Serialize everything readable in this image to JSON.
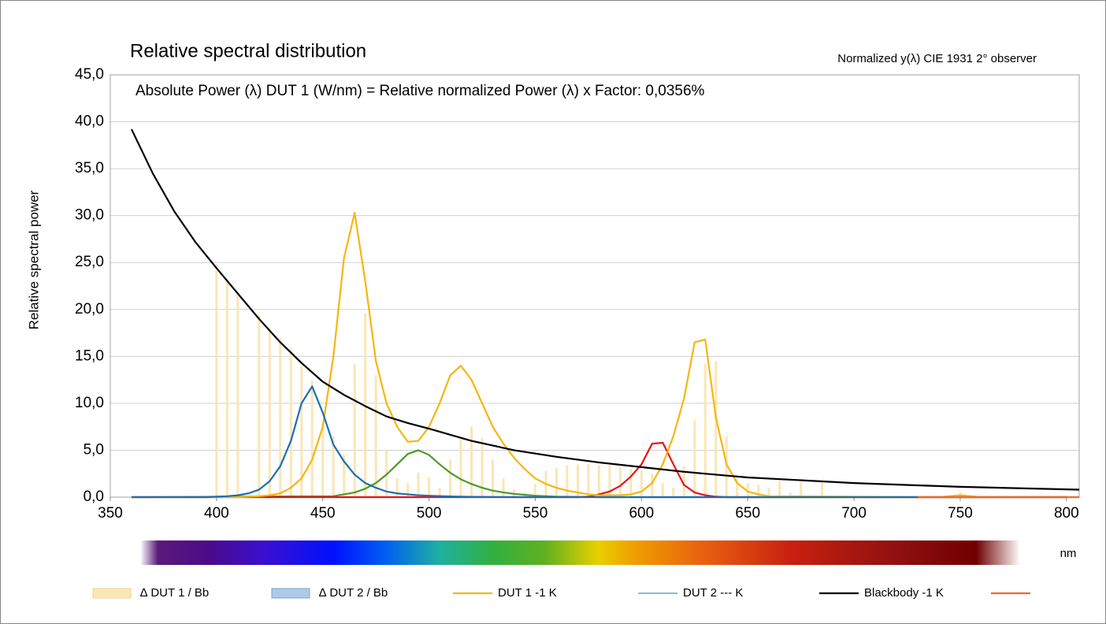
{
  "chart_data": {
    "type": "line",
    "title": "Relative spectral distribution",
    "subtitle": "Normalized y(λ) CIE 1931 2° observer",
    "annotation": "Absolute Power (λ) DUT 1 (W/nm) = Relative normalized Power (λ) x Factor: 0,0356%",
    "y_label": "Relative spectral power",
    "x_label": "nm",
    "xlim": [
      350,
      806
    ],
    "ylim": [
      0,
      45
    ],
    "xticks": [
      350,
      400,
      450,
      500,
      550,
      600,
      650,
      700,
      750,
      800
    ],
    "yticks": [
      {
        "value": 0,
        "label": "0,0"
      },
      {
        "value": 5,
        "label": "5,0"
      },
      {
        "value": 10,
        "label": "10,0"
      },
      {
        "value": 15,
        "label": "15,0"
      },
      {
        "value": 20,
        "label": "20,0"
      },
      {
        "value": 25,
        "label": "25,0"
      },
      {
        "value": 30,
        "label": "30,0"
      },
      {
        "value": 35,
        "label": "35,0"
      },
      {
        "value": 40,
        "label": "40,0"
      },
      {
        "value": 45,
        "label": "45,0"
      }
    ],
    "grid": true,
    "series": [
      {
        "name": "∆ DUT 1 / Bb",
        "type": "bar",
        "color": "#fbe6b4",
        "x": [
          400,
          405,
          410,
          420,
          425,
          430,
          435,
          440,
          445,
          450,
          455,
          460,
          465,
          470,
          475,
          480,
          485,
          490,
          495,
          500,
          505,
          510,
          515,
          520,
          525,
          530,
          535,
          540,
          545,
          550,
          555,
          560,
          565,
          570,
          575,
          580,
          585,
          590,
          595,
          600,
          605,
          610,
          615,
          620,
          625,
          630,
          635,
          640,
          645,
          650,
          655,
          660,
          665,
          670,
          675,
          685,
          750
        ],
        "values": [
          24.8,
          23.2,
          21.8,
          19.3,
          18.0,
          17.0,
          15.9,
          14.0,
          12.4,
          8.0,
          6.5,
          4.5,
          14.2,
          19.6,
          13.0,
          5.0,
          2.0,
          1.5,
          2.6,
          2.1,
          1.0,
          4.0,
          6.2,
          7.5,
          6.3,
          4.0,
          2.0,
          0.8,
          0.5,
          1.4,
          2.8,
          3.1,
          3.4,
          3.5,
          3.5,
          3.4,
          3.4,
          3.2,
          3.0,
          2.9,
          2.5,
          1.5,
          1.0,
          3.3,
          8.2,
          14.2,
          14.5,
          6.5,
          2.0,
          1.5,
          1.3,
          1.0,
          1.7,
          0.5,
          1.6,
          1.6,
          0.5
        ]
      },
      {
        "name": "∆ DUT 2 / Bb",
        "type": "bar",
        "color": "#aecbe6",
        "x": [],
        "values": []
      },
      {
        "type": "line",
        "color": "#4e9a2a",
        "x": [
          360,
          455,
          460,
          465,
          470,
          475,
          480,
          485,
          490,
          495,
          500,
          505,
          510,
          515,
          520,
          525,
          530,
          535,
          540,
          545,
          550,
          560,
          580,
          800
        ],
        "values": [
          0,
          0.1,
          0.3,
          0.5,
          0.9,
          1.5,
          2.4,
          3.5,
          4.6,
          5.0,
          4.5,
          3.5,
          2.6,
          1.9,
          1.4,
          1.0,
          0.7,
          0.5,
          0.35,
          0.25,
          0.15,
          0.05,
          0,
          0
        ]
      },
      {
        "type": "line",
        "color": "#e8121a",
        "x": [
          360,
          570,
          575,
          580,
          585,
          590,
          595,
          600,
          605,
          610,
          615,
          620,
          625,
          630,
          635,
          640,
          800
        ],
        "values": [
          0,
          0,
          0.05,
          0.3,
          0.6,
          1.2,
          2.2,
          3.5,
          5.7,
          5.8,
          3.5,
          1.3,
          0.5,
          0.2,
          0.05,
          0,
          0
        ]
      },
      {
        "name": "DUT 1 -1 K",
        "type": "line",
        "color": "#f5b60f",
        "x": [
          360,
          410,
          415,
          420,
          425,
          430,
          435,
          440,
          445,
          450,
          455,
          460,
          465,
          470,
          475,
          480,
          485,
          490,
          495,
          500,
          505,
          510,
          515,
          520,
          525,
          530,
          535,
          540,
          545,
          550,
          555,
          560,
          565,
          570,
          575,
          580,
          585,
          590,
          595,
          600,
          605,
          610,
          615,
          620,
          625,
          630,
          635,
          640,
          645,
          650,
          655,
          660,
          740,
          750,
          760,
          800
        ],
        "values": [
          0,
          0,
          0.05,
          0.1,
          0.2,
          0.4,
          1.0,
          2.0,
          4.0,
          7.5,
          15.0,
          25.5,
          30.3,
          23.0,
          14.5,
          10.0,
          7.5,
          5.9,
          6.0,
          7.5,
          10.0,
          13.0,
          14.0,
          12.5,
          10.0,
          7.5,
          5.7,
          4.2,
          3.0,
          2.0,
          1.4,
          1.0,
          0.7,
          0.5,
          0.3,
          0.2,
          0.2,
          0.2,
          0.3,
          0.6,
          1.5,
          3.5,
          6.5,
          10.5,
          16.5,
          16.8,
          8.5,
          3.5,
          1.5,
          0.6,
          0.3,
          0.1,
          0,
          0.2,
          0,
          0
        ]
      },
      {
        "name": "DUT 2 ---  K",
        "type": "line",
        "color": "#1a6fb5",
        "x": [
          360,
          395,
          400,
          405,
          410,
          415,
          420,
          425,
          430,
          435,
          440,
          445,
          450,
          455,
          460,
          465,
          470,
          475,
          480,
          485,
          490,
          495,
          500,
          510,
          520,
          540,
          800
        ],
        "values": [
          0,
          0,
          0.05,
          0.1,
          0.2,
          0.4,
          0.8,
          1.7,
          3.3,
          6.0,
          10.0,
          11.8,
          9.0,
          5.6,
          3.8,
          2.4,
          1.5,
          1.0,
          0.6,
          0.4,
          0.3,
          0.2,
          0.15,
          0.08,
          0.03,
          0,
          0
        ]
      },
      {
        "name": "Blackbody -1 K",
        "type": "line",
        "color": "#000000",
        "x": [
          360,
          370,
          380,
          390,
          400,
          410,
          420,
          430,
          440,
          450,
          460,
          470,
          480,
          490,
          500,
          520,
          540,
          560,
          580,
          600,
          620,
          650,
          700,
          750,
          806
        ],
        "values": [
          39.2,
          34.5,
          30.5,
          27.2,
          24.4,
          21.7,
          19.0,
          16.5,
          14.3,
          12.3,
          10.9,
          9.7,
          8.6,
          7.9,
          7.3,
          6.0,
          5.0,
          4.3,
          3.7,
          3.2,
          2.7,
          2.1,
          1.5,
          1.1,
          0.8
        ]
      },
      {
        "type": "line",
        "color": "#ef6a2b",
        "x": [
          730,
          806
        ],
        "values": [
          0,
          0
        ]
      }
    ]
  }
}
